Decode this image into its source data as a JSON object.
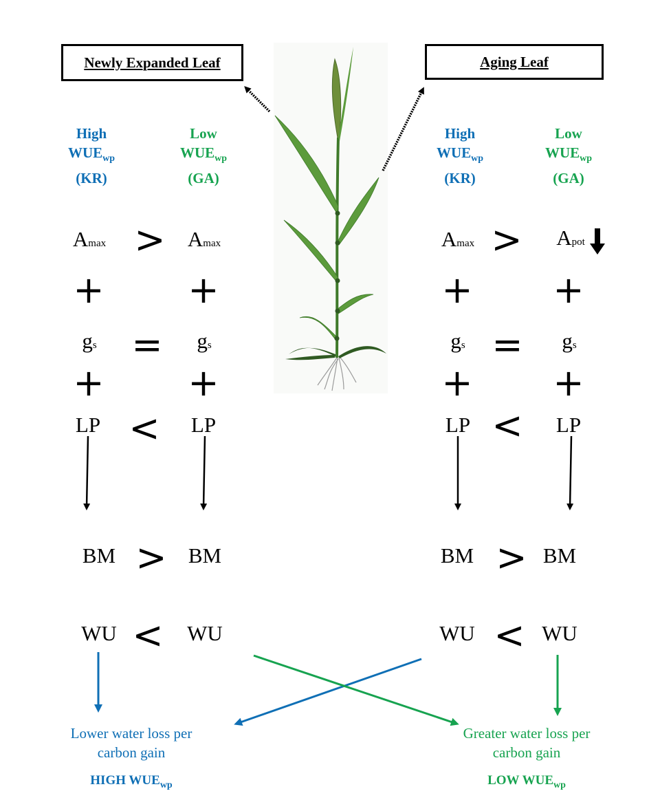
{
  "titles": {
    "left": "Newly Expanded Leaf",
    "right": "Aging Leaf"
  },
  "headers": {
    "high": {
      "line1": "High",
      "base": "WUE",
      "sub": "wp",
      "line3": "(KR)"
    },
    "low": {
      "line1": "Low",
      "base": "WUE",
      "sub": "wp",
      "line3": "(GA)"
    }
  },
  "terms": {
    "amax": {
      "base": "A",
      "sub": "max"
    },
    "apot": {
      "base": "A",
      "sub": "pot"
    },
    "gs": {
      "base": "g",
      "sub": "s"
    },
    "lp": "LP",
    "bm": "BM",
    "wu": "WU"
  },
  "operators": {
    "greater": ">",
    "less": "<",
    "equal": "=",
    "plus": "+"
  },
  "outcomes": {
    "lower": "Lower water loss per carbon gain",
    "greater": "Greater water loss per carbon gain",
    "high_base": "HIGH WUE",
    "high_sub": "wp",
    "low_base": "LOW WUE",
    "low_sub": "wp"
  },
  "colors": {
    "blue": "#0f6fb5",
    "green": "#17a350",
    "plant": "#4f8a34",
    "black": "#000000"
  },
  "icons": {
    "plant": "grass-plant-illustration",
    "decrease": "down-arrow-icon"
  }
}
